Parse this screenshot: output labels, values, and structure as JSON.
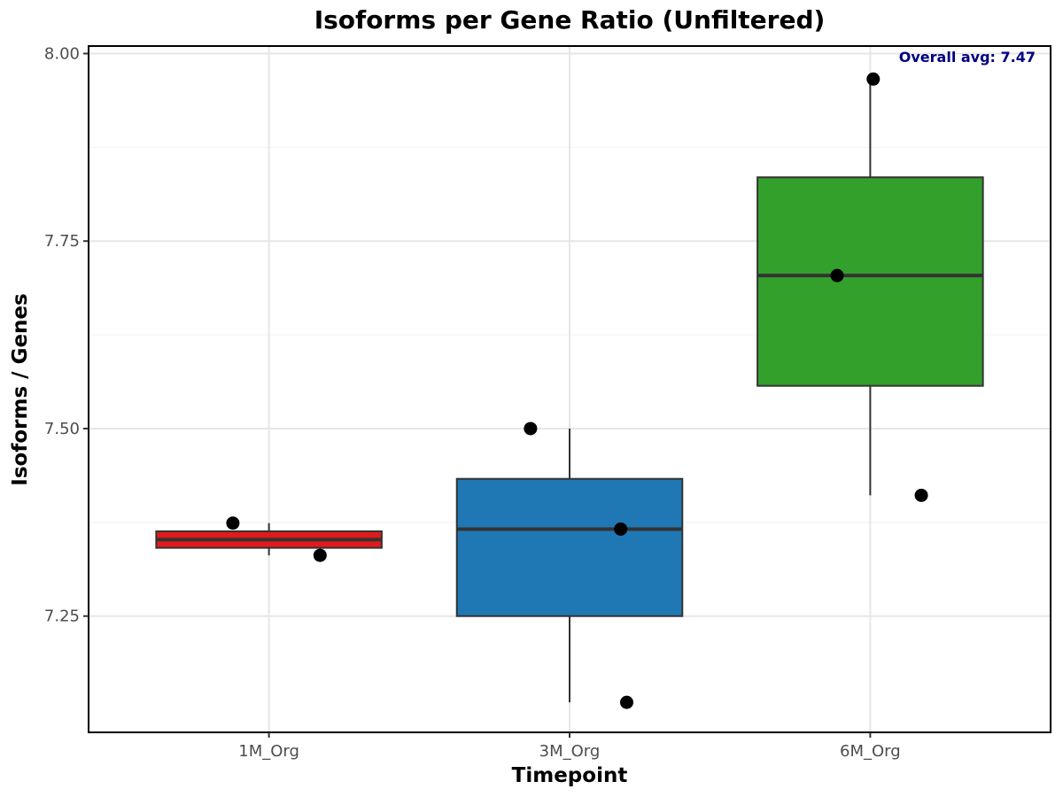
{
  "chart_data": {
    "type": "box",
    "title": "Isoforms per Gene Ratio (Unfiltered)",
    "xlabel": "Timepoint",
    "ylabel": "Isoforms / Genes",
    "categories": [
      "1M_Org",
      "3M_Org",
      "6M_Org"
    ],
    "ylim": [
      7.095,
      8.01
    ],
    "yticks": [
      7.25,
      7.5,
      7.75,
      8.0
    ],
    "ytick_labels": [
      "7.25",
      "7.50",
      "7.75",
      "8.00"
    ],
    "grid": true,
    "legend": "none",
    "annotation": {
      "text": "Overall avg: 7.47",
      "color": "#000080",
      "placement": "top-right"
    },
    "boxes": [
      {
        "category": "1M_Org",
        "color": "#E31A1C",
        "whisker_low": 7.331,
        "q1": 7.341,
        "median": 7.352,
        "q3": 7.363,
        "whisker_high": 7.374
      },
      {
        "category": "3M_Org",
        "color": "#1F78B4",
        "whisker_low": 7.135,
        "q1": 7.25,
        "median": 7.366,
        "q3": 7.433,
        "whisker_high": 7.5
      },
      {
        "category": "6M_Org",
        "color": "#33A02C",
        "whisker_low": 7.411,
        "q1": 7.557,
        "median": 7.704,
        "q3": 7.835,
        "whisker_high": 7.966
      }
    ],
    "points": [
      {
        "category": "1M_Org",
        "jitter": -0.12,
        "value": 7.374
      },
      {
        "category": "1M_Org",
        "jitter": 0.17,
        "value": 7.331
      },
      {
        "category": "3M_Org",
        "jitter": -0.13,
        "value": 7.5
      },
      {
        "category": "3M_Org",
        "jitter": 0.17,
        "value": 7.366
      },
      {
        "category": "3M_Org",
        "jitter": 0.19,
        "value": 7.135
      },
      {
        "category": "6M_Org",
        "jitter": -0.11,
        "value": 7.704
      },
      {
        "category": "6M_Org",
        "jitter": 0.01,
        "value": 7.966
      },
      {
        "category": "6M_Org",
        "jitter": 0.17,
        "value": 7.411
      }
    ]
  }
}
